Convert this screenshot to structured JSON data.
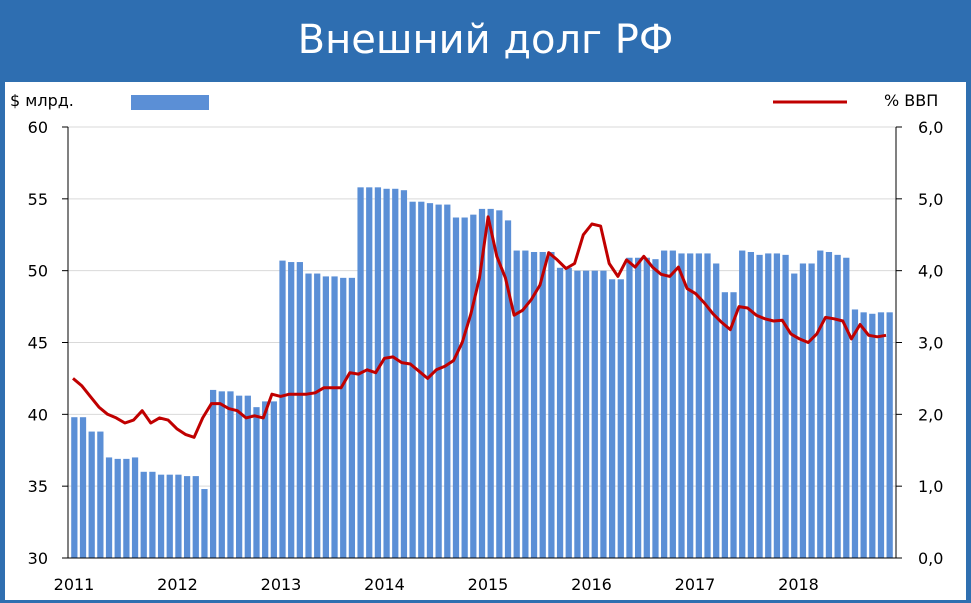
{
  "title": "Внешний долг РФ",
  "colors": {
    "header_bg": "#2e6eb1",
    "bar": "#5b8fd6",
    "line": "#c00000",
    "panel": "#ffffff"
  },
  "chart_data": {
    "type": "bar+line",
    "left_axis_label": "$ млрд.",
    "right_axis_label": "% ВВП",
    "ylim_left": [
      30,
      60
    ],
    "ylim_right": [
      0.0,
      6.0
    ],
    "y_ticks_left": [
      "30",
      "35",
      "40",
      "45",
      "50",
      "55",
      "60"
    ],
    "y_ticks_right": [
      "0,0",
      "1,0",
      "2,0",
      "3,0",
      "4,0",
      "5,0",
      "6,0"
    ],
    "x_ticks": [
      "2011",
      "2012",
      "2013",
      "2014",
      "2015",
      "2016",
      "2017",
      "2018"
    ],
    "grid": true,
    "legend_position": "top",
    "series": [
      {
        "type": "bar",
        "axis": "left",
        "values": [
          39.8,
          39.8,
          38.8,
          38.8,
          37.0,
          36.9,
          36.9,
          37.0,
          36.0,
          36.0,
          35.8,
          35.8,
          35.8,
          35.7,
          35.7,
          34.8,
          41.7,
          41.6,
          41.6,
          41.3,
          41.3,
          40.5,
          40.9,
          40.9,
          50.7,
          50.6,
          50.6,
          49.8,
          49.8,
          49.6,
          49.6,
          49.5,
          49.5,
          55.8,
          55.8,
          55.8,
          55.7,
          55.7,
          55.6,
          54.8,
          54.8,
          54.7,
          54.6,
          54.6,
          53.7,
          53.7,
          53.9,
          54.3,
          54.3,
          54.2,
          53.5,
          51.4,
          51.4,
          51.3,
          51.3,
          51.3,
          50.2,
          50.2,
          50.0,
          50.0,
          50.0,
          50.0,
          49.4,
          49.4,
          50.9,
          50.9,
          50.9,
          50.8,
          51.4,
          51.4,
          51.2,
          51.2,
          51.2,
          51.2,
          50.5,
          48.5,
          48.5,
          51.4,
          51.3,
          51.1,
          51.2,
          51.2,
          51.1,
          49.8,
          50.5,
          50.5,
          51.4,
          51.3,
          51.1,
          50.9,
          47.3,
          47.1,
          47.0,
          47.1,
          47.1
        ]
      },
      {
        "type": "line",
        "axis": "right",
        "values": [
          2.5,
          2.4,
          2.25,
          2.1,
          2.0,
          1.95,
          1.88,
          1.92,
          2.05,
          1.88,
          1.95,
          1.92,
          1.8,
          1.72,
          1.68,
          1.95,
          2.15,
          2.15,
          2.08,
          2.05,
          1.95,
          1.98,
          1.95,
          2.28,
          2.25,
          2.28,
          2.28,
          2.28,
          2.3,
          2.37,
          2.37,
          2.37,
          2.58,
          2.56,
          2.62,
          2.58,
          2.78,
          2.8,
          2.72,
          2.7,
          2.6,
          2.5,
          2.62,
          2.67,
          2.75,
          3.0,
          3.4,
          3.9,
          4.75,
          4.2,
          3.9,
          3.38,
          3.45,
          3.6,
          3.8,
          4.25,
          4.15,
          4.03,
          4.1,
          4.5,
          4.65,
          4.62,
          4.1,
          3.92,
          4.15,
          4.05,
          4.2,
          4.05,
          3.95,
          3.92,
          4.05,
          3.75,
          3.68,
          3.55,
          3.4,
          3.28,
          3.18,
          3.5,
          3.48,
          3.38,
          3.33,
          3.3,
          3.31,
          3.12,
          3.05,
          3.0,
          3.12,
          3.35,
          3.33,
          3.3,
          3.05,
          3.25,
          3.1,
          3.08,
          3.1
        ]
      }
    ]
  }
}
